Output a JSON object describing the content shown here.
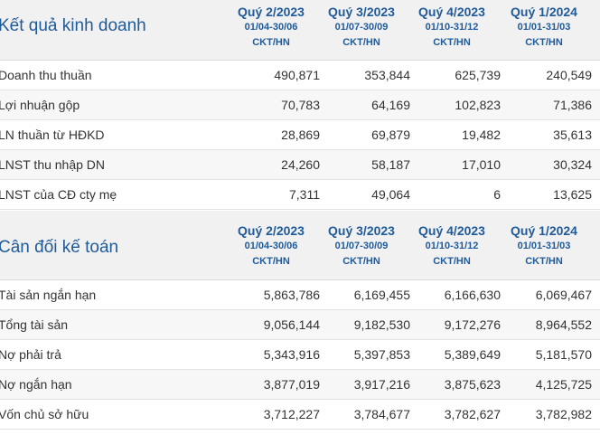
{
  "income": {
    "title": "Kết quả kinh doanh",
    "columns": [
      {
        "quarter": "Quý 2/2023",
        "dates": "01/04-30/06",
        "unit": "CKT/HN"
      },
      {
        "quarter": "Quý 3/2023",
        "dates": "01/07-30/09",
        "unit": "CKT/HN"
      },
      {
        "quarter": "Quý 4/2023",
        "dates": "01/10-31/12",
        "unit": "CKT/HN"
      },
      {
        "quarter": "Quý 1/2024",
        "dates": "01/01-31/03",
        "unit": "CKT/HN"
      }
    ],
    "rows": [
      {
        "label": "Doanh thu thuần",
        "values": [
          "490,871",
          "353,844",
          "625,739",
          "240,549"
        ]
      },
      {
        "label": "Lợi nhuận gộp",
        "values": [
          "70,783",
          "64,169",
          "102,823",
          "71,386"
        ]
      },
      {
        "label": "LN thuần từ HĐKD",
        "values": [
          "28,869",
          "69,879",
          "19,482",
          "35,613"
        ]
      },
      {
        "label": "LNST thu nhập DN",
        "values": [
          "24,260",
          "58,187",
          "17,010",
          "30,324"
        ]
      },
      {
        "label": "LNST của CĐ cty mẹ",
        "values": [
          "7,311",
          "49,064",
          "6",
          "13,625"
        ]
      }
    ]
  },
  "balance": {
    "title": "Cân đối kế toán",
    "columns": [
      {
        "quarter": "Quý 2/2023",
        "dates": "01/04-30/06",
        "unit": "CKT/HN"
      },
      {
        "quarter": "Quý 3/2023",
        "dates": "01/07-30/09",
        "unit": "CKT/HN"
      },
      {
        "quarter": "Quý 4/2023",
        "dates": "01/10-31/12",
        "unit": "CKT/HN"
      },
      {
        "quarter": "Quý 1/2024",
        "dates": "01/01-31/03",
        "unit": "CKT/HN"
      }
    ],
    "rows": [
      {
        "label": "Tài sản ngắn hạn",
        "values": [
          "5,863,786",
          "6,169,455",
          "6,166,630",
          "6,069,467"
        ]
      },
      {
        "label": "Tổng tài sản",
        "values": [
          "9,056,144",
          "9,182,530",
          "9,172,276",
          "8,964,552"
        ]
      },
      {
        "label": "Nợ phải trả",
        "values": [
          "5,343,916",
          "5,397,853",
          "5,389,649",
          "5,181,570"
        ]
      },
      {
        "label": "Nợ ngắn hạn",
        "values": [
          "3,877,019",
          "3,917,216",
          "3,875,623",
          "4,125,725"
        ]
      },
      {
        "label": "Vốn chủ sở hữu",
        "values": [
          "3,712,227",
          "3,784,677",
          "3,782,627",
          "3,782,982"
        ]
      }
    ]
  }
}
